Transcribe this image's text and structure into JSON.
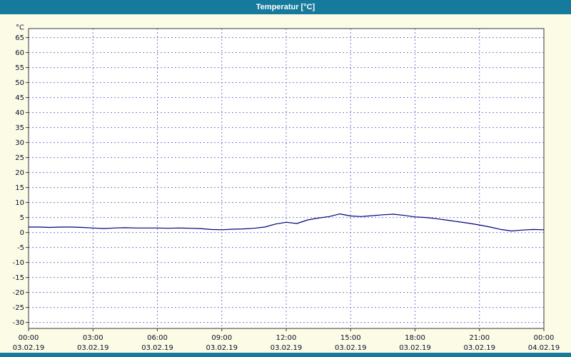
{
  "window": {
    "title": "Temperatur [°C]"
  },
  "colors": {
    "titlebar": "#157a9c",
    "background": "#fbfbe6",
    "plot_background": "#ffffff",
    "plot_border": "#3a3a3a",
    "grid": "#7b7bc4",
    "tick_text": "#10102a",
    "line": "#000080"
  },
  "chart_data": {
    "type": "line",
    "title": "Temperatur [°C]",
    "ylabel": "°C",
    "xlabel": "",
    "ylim": [
      -30,
      65
    ],
    "grid": true,
    "legend_position": "none",
    "y_ticks": [
      65,
      60,
      55,
      50,
      45,
      40,
      35,
      30,
      25,
      20,
      15,
      10,
      5,
      0,
      -5,
      -10,
      -15,
      -20,
      -25,
      -30
    ],
    "x_ticks": [
      {
        "time": "00:00",
        "date": "03.02.19"
      },
      {
        "time": "03:00",
        "date": "03.02.19"
      },
      {
        "time": "06:00",
        "date": "03.02.19"
      },
      {
        "time": "09:00",
        "date": "03.02.19"
      },
      {
        "time": "12:00",
        "date": "03.02.19"
      },
      {
        "time": "15:00",
        "date": "03.02.19"
      },
      {
        "time": "18:00",
        "date": "03.02.19"
      },
      {
        "time": "21:00",
        "date": "03.02.19"
      },
      {
        "time": "00:00",
        "date": "04.02.19"
      }
    ],
    "series": [
      {
        "name": "Temperatur",
        "color": "#000080",
        "x_hours": [
          0,
          0.5,
          1,
          1.5,
          2,
          2.5,
          3,
          3.5,
          4,
          4.5,
          5,
          5.5,
          6,
          6.5,
          7,
          7.5,
          8,
          8.5,
          9,
          9.5,
          10,
          10.5,
          11,
          11.5,
          12,
          12.5,
          13,
          13.5,
          14,
          14.5,
          15,
          15.5,
          16,
          16.5,
          17,
          17.5,
          18,
          18.5,
          19,
          19.5,
          20,
          20.5,
          21,
          21.5,
          22,
          22.5,
          23,
          23.5,
          24
        ],
        "values": [
          1.8,
          1.8,
          1.7,
          1.8,
          1.8,
          1.7,
          1.5,
          1.3,
          1.5,
          1.6,
          1.5,
          1.5,
          1.5,
          1.4,
          1.5,
          1.4,
          1.3,
          1.0,
          0.9,
          1.1,
          1.2,
          1.4,
          1.8,
          2.8,
          3.4,
          3.0,
          4.2,
          4.8,
          5.3,
          6.2,
          5.5,
          5.3,
          5.6,
          5.9,
          6.1,
          5.7,
          5.2,
          5.0,
          4.6,
          4.1,
          3.6,
          3.1,
          2.5,
          1.8,
          1.0,
          0.5,
          0.8,
          1.0,
          0.9
        ]
      }
    ]
  }
}
